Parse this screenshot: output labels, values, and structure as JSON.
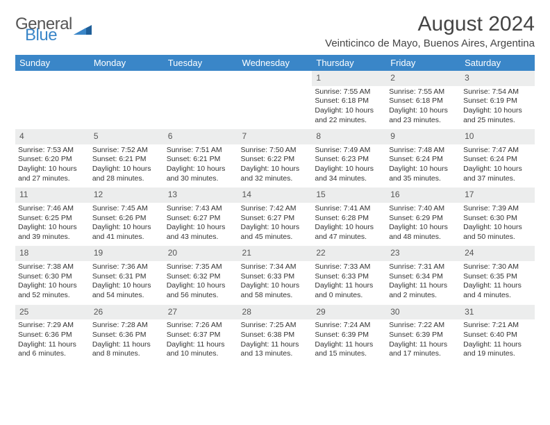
{
  "logo": {
    "text1": "General",
    "text2": "Blue",
    "color_general": "#555555",
    "color_blue": "#3a86c8"
  },
  "title": "August 2024",
  "location": "Veinticinco de Mayo, Buenos Aires, Argentina",
  "colors": {
    "header_bg": "#3a86c8",
    "header_text": "#ffffff",
    "daynum_bg": "#eceded",
    "text": "#333333"
  },
  "weekdays": [
    "Sunday",
    "Monday",
    "Tuesday",
    "Wednesday",
    "Thursday",
    "Friday",
    "Saturday"
  ],
  "weeks": [
    [
      null,
      null,
      null,
      null,
      {
        "n": "1",
        "sr": "Sunrise: 7:55 AM",
        "ss": "Sunset: 6:18 PM",
        "dl1": "Daylight: 10 hours",
        "dl2": "and 22 minutes."
      },
      {
        "n": "2",
        "sr": "Sunrise: 7:55 AM",
        "ss": "Sunset: 6:18 PM",
        "dl1": "Daylight: 10 hours",
        "dl2": "and 23 minutes."
      },
      {
        "n": "3",
        "sr": "Sunrise: 7:54 AM",
        "ss": "Sunset: 6:19 PM",
        "dl1": "Daylight: 10 hours",
        "dl2": "and 25 minutes."
      }
    ],
    [
      {
        "n": "4",
        "sr": "Sunrise: 7:53 AM",
        "ss": "Sunset: 6:20 PM",
        "dl1": "Daylight: 10 hours",
        "dl2": "and 27 minutes."
      },
      {
        "n": "5",
        "sr": "Sunrise: 7:52 AM",
        "ss": "Sunset: 6:21 PM",
        "dl1": "Daylight: 10 hours",
        "dl2": "and 28 minutes."
      },
      {
        "n": "6",
        "sr": "Sunrise: 7:51 AM",
        "ss": "Sunset: 6:21 PM",
        "dl1": "Daylight: 10 hours",
        "dl2": "and 30 minutes."
      },
      {
        "n": "7",
        "sr": "Sunrise: 7:50 AM",
        "ss": "Sunset: 6:22 PM",
        "dl1": "Daylight: 10 hours",
        "dl2": "and 32 minutes."
      },
      {
        "n": "8",
        "sr": "Sunrise: 7:49 AM",
        "ss": "Sunset: 6:23 PM",
        "dl1": "Daylight: 10 hours",
        "dl2": "and 34 minutes."
      },
      {
        "n": "9",
        "sr": "Sunrise: 7:48 AM",
        "ss": "Sunset: 6:24 PM",
        "dl1": "Daylight: 10 hours",
        "dl2": "and 35 minutes."
      },
      {
        "n": "10",
        "sr": "Sunrise: 7:47 AM",
        "ss": "Sunset: 6:24 PM",
        "dl1": "Daylight: 10 hours",
        "dl2": "and 37 minutes."
      }
    ],
    [
      {
        "n": "11",
        "sr": "Sunrise: 7:46 AM",
        "ss": "Sunset: 6:25 PM",
        "dl1": "Daylight: 10 hours",
        "dl2": "and 39 minutes."
      },
      {
        "n": "12",
        "sr": "Sunrise: 7:45 AM",
        "ss": "Sunset: 6:26 PM",
        "dl1": "Daylight: 10 hours",
        "dl2": "and 41 minutes."
      },
      {
        "n": "13",
        "sr": "Sunrise: 7:43 AM",
        "ss": "Sunset: 6:27 PM",
        "dl1": "Daylight: 10 hours",
        "dl2": "and 43 minutes."
      },
      {
        "n": "14",
        "sr": "Sunrise: 7:42 AM",
        "ss": "Sunset: 6:27 PM",
        "dl1": "Daylight: 10 hours",
        "dl2": "and 45 minutes."
      },
      {
        "n": "15",
        "sr": "Sunrise: 7:41 AM",
        "ss": "Sunset: 6:28 PM",
        "dl1": "Daylight: 10 hours",
        "dl2": "and 47 minutes."
      },
      {
        "n": "16",
        "sr": "Sunrise: 7:40 AM",
        "ss": "Sunset: 6:29 PM",
        "dl1": "Daylight: 10 hours",
        "dl2": "and 48 minutes."
      },
      {
        "n": "17",
        "sr": "Sunrise: 7:39 AM",
        "ss": "Sunset: 6:30 PM",
        "dl1": "Daylight: 10 hours",
        "dl2": "and 50 minutes."
      }
    ],
    [
      {
        "n": "18",
        "sr": "Sunrise: 7:38 AM",
        "ss": "Sunset: 6:30 PM",
        "dl1": "Daylight: 10 hours",
        "dl2": "and 52 minutes."
      },
      {
        "n": "19",
        "sr": "Sunrise: 7:36 AM",
        "ss": "Sunset: 6:31 PM",
        "dl1": "Daylight: 10 hours",
        "dl2": "and 54 minutes."
      },
      {
        "n": "20",
        "sr": "Sunrise: 7:35 AM",
        "ss": "Sunset: 6:32 PM",
        "dl1": "Daylight: 10 hours",
        "dl2": "and 56 minutes."
      },
      {
        "n": "21",
        "sr": "Sunrise: 7:34 AM",
        "ss": "Sunset: 6:33 PM",
        "dl1": "Daylight: 10 hours",
        "dl2": "and 58 minutes."
      },
      {
        "n": "22",
        "sr": "Sunrise: 7:33 AM",
        "ss": "Sunset: 6:33 PM",
        "dl1": "Daylight: 11 hours",
        "dl2": "and 0 minutes."
      },
      {
        "n": "23",
        "sr": "Sunrise: 7:31 AM",
        "ss": "Sunset: 6:34 PM",
        "dl1": "Daylight: 11 hours",
        "dl2": "and 2 minutes."
      },
      {
        "n": "24",
        "sr": "Sunrise: 7:30 AM",
        "ss": "Sunset: 6:35 PM",
        "dl1": "Daylight: 11 hours",
        "dl2": "and 4 minutes."
      }
    ],
    [
      {
        "n": "25",
        "sr": "Sunrise: 7:29 AM",
        "ss": "Sunset: 6:36 PM",
        "dl1": "Daylight: 11 hours",
        "dl2": "and 6 minutes."
      },
      {
        "n": "26",
        "sr": "Sunrise: 7:28 AM",
        "ss": "Sunset: 6:36 PM",
        "dl1": "Daylight: 11 hours",
        "dl2": "and 8 minutes."
      },
      {
        "n": "27",
        "sr": "Sunrise: 7:26 AM",
        "ss": "Sunset: 6:37 PM",
        "dl1": "Daylight: 11 hours",
        "dl2": "and 10 minutes."
      },
      {
        "n": "28",
        "sr": "Sunrise: 7:25 AM",
        "ss": "Sunset: 6:38 PM",
        "dl1": "Daylight: 11 hours",
        "dl2": "and 13 minutes."
      },
      {
        "n": "29",
        "sr": "Sunrise: 7:24 AM",
        "ss": "Sunset: 6:39 PM",
        "dl1": "Daylight: 11 hours",
        "dl2": "and 15 minutes."
      },
      {
        "n": "30",
        "sr": "Sunrise: 7:22 AM",
        "ss": "Sunset: 6:39 PM",
        "dl1": "Daylight: 11 hours",
        "dl2": "and 17 minutes."
      },
      {
        "n": "31",
        "sr": "Sunrise: 7:21 AM",
        "ss": "Sunset: 6:40 PM",
        "dl1": "Daylight: 11 hours",
        "dl2": "and 19 minutes."
      }
    ]
  ]
}
